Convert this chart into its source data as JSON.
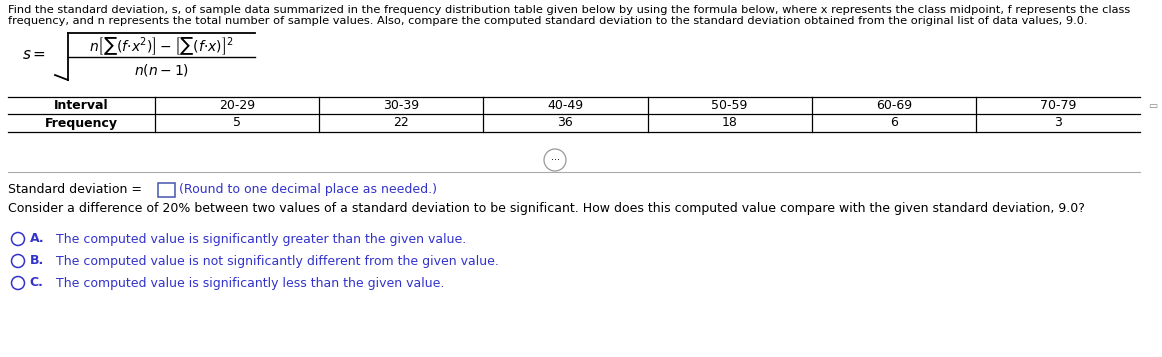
{
  "intro_text_line1": "Find the standard deviation, s, of sample data summarized in the frequency distribution table given below by using the formula below, where x represents the class midpoint, f represents the class",
  "intro_text_line2": "frequency, and n represents the total number of sample values. Also, compare the computed standard deviation to the standard deviation obtained from the original list of data values, 9.0.",
  "intervals": [
    "20-29",
    "30-39",
    "40-49",
    "50-59",
    "60-69",
    "70-79"
  ],
  "frequencies": [
    "5",
    "22",
    "36",
    "18",
    "6",
    "3"
  ],
  "row_label_interval": "Interval",
  "row_label_frequency": "Frequency",
  "standard_deviation_label": "Standard deviation =",
  "round_note": "(Round to one decimal place as needed.)",
  "compare_text": "Consider a difference of 20% between two values of a standard deviation to be significant. How does this computed value compare with the given standard deviation, 9.0?",
  "option_a_bold": "A.",
  "option_a_text": "  The computed value is significantly greater than the given value.",
  "option_b_bold": "B.",
  "option_b_text": "  The computed value is not significantly different from the given value.",
  "option_c_bold": "C.",
  "option_c_text": "  The computed value is significantly less than the given value.",
  "text_color": "#000000",
  "blue_color": "#3333CC",
  "bg_color": "#ffffff",
  "font_size_intro": 8.2,
  "font_size_table": 9.0,
  "font_size_body": 9.0,
  "font_size_formula": 11.0
}
